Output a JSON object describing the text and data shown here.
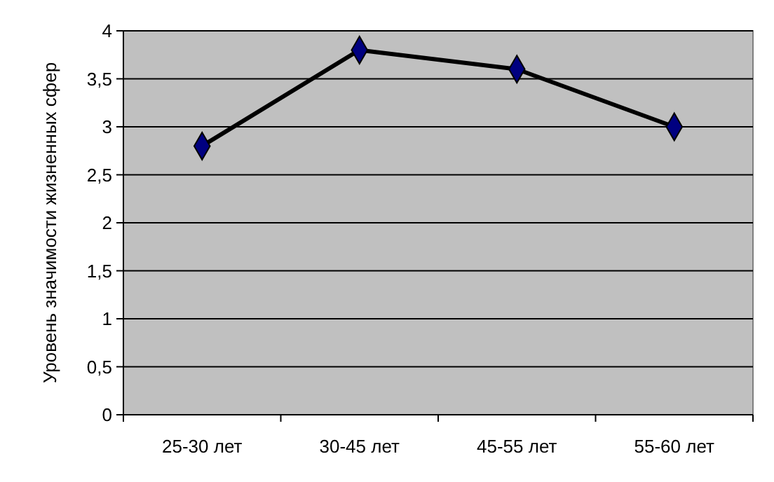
{
  "chart_data": {
    "type": "line",
    "ylabel": "Уровень значимости жизненных сфер",
    "categories": [
      "25-30 лет",
      "30-45 лет",
      "45-55 лет",
      "55-60 лет"
    ],
    "series": [
      {
        "color": "#000080",
        "values": [
          2.8,
          3.8,
          3.6,
          3.0
        ]
      }
    ],
    "ylim": [
      0,
      4
    ],
    "yticks": [
      0,
      {
        "value": 0.5,
        "label": "0,5"
      },
      1,
      {
        "value": 1.5,
        "label": "1,5"
      },
      2,
      {
        "value": 2.5,
        "label": "2,5"
      },
      3,
      {
        "value": 3.5,
        "label": "3,5"
      },
      4
    ],
    "grid": "y",
    "marker": "diamond"
  }
}
